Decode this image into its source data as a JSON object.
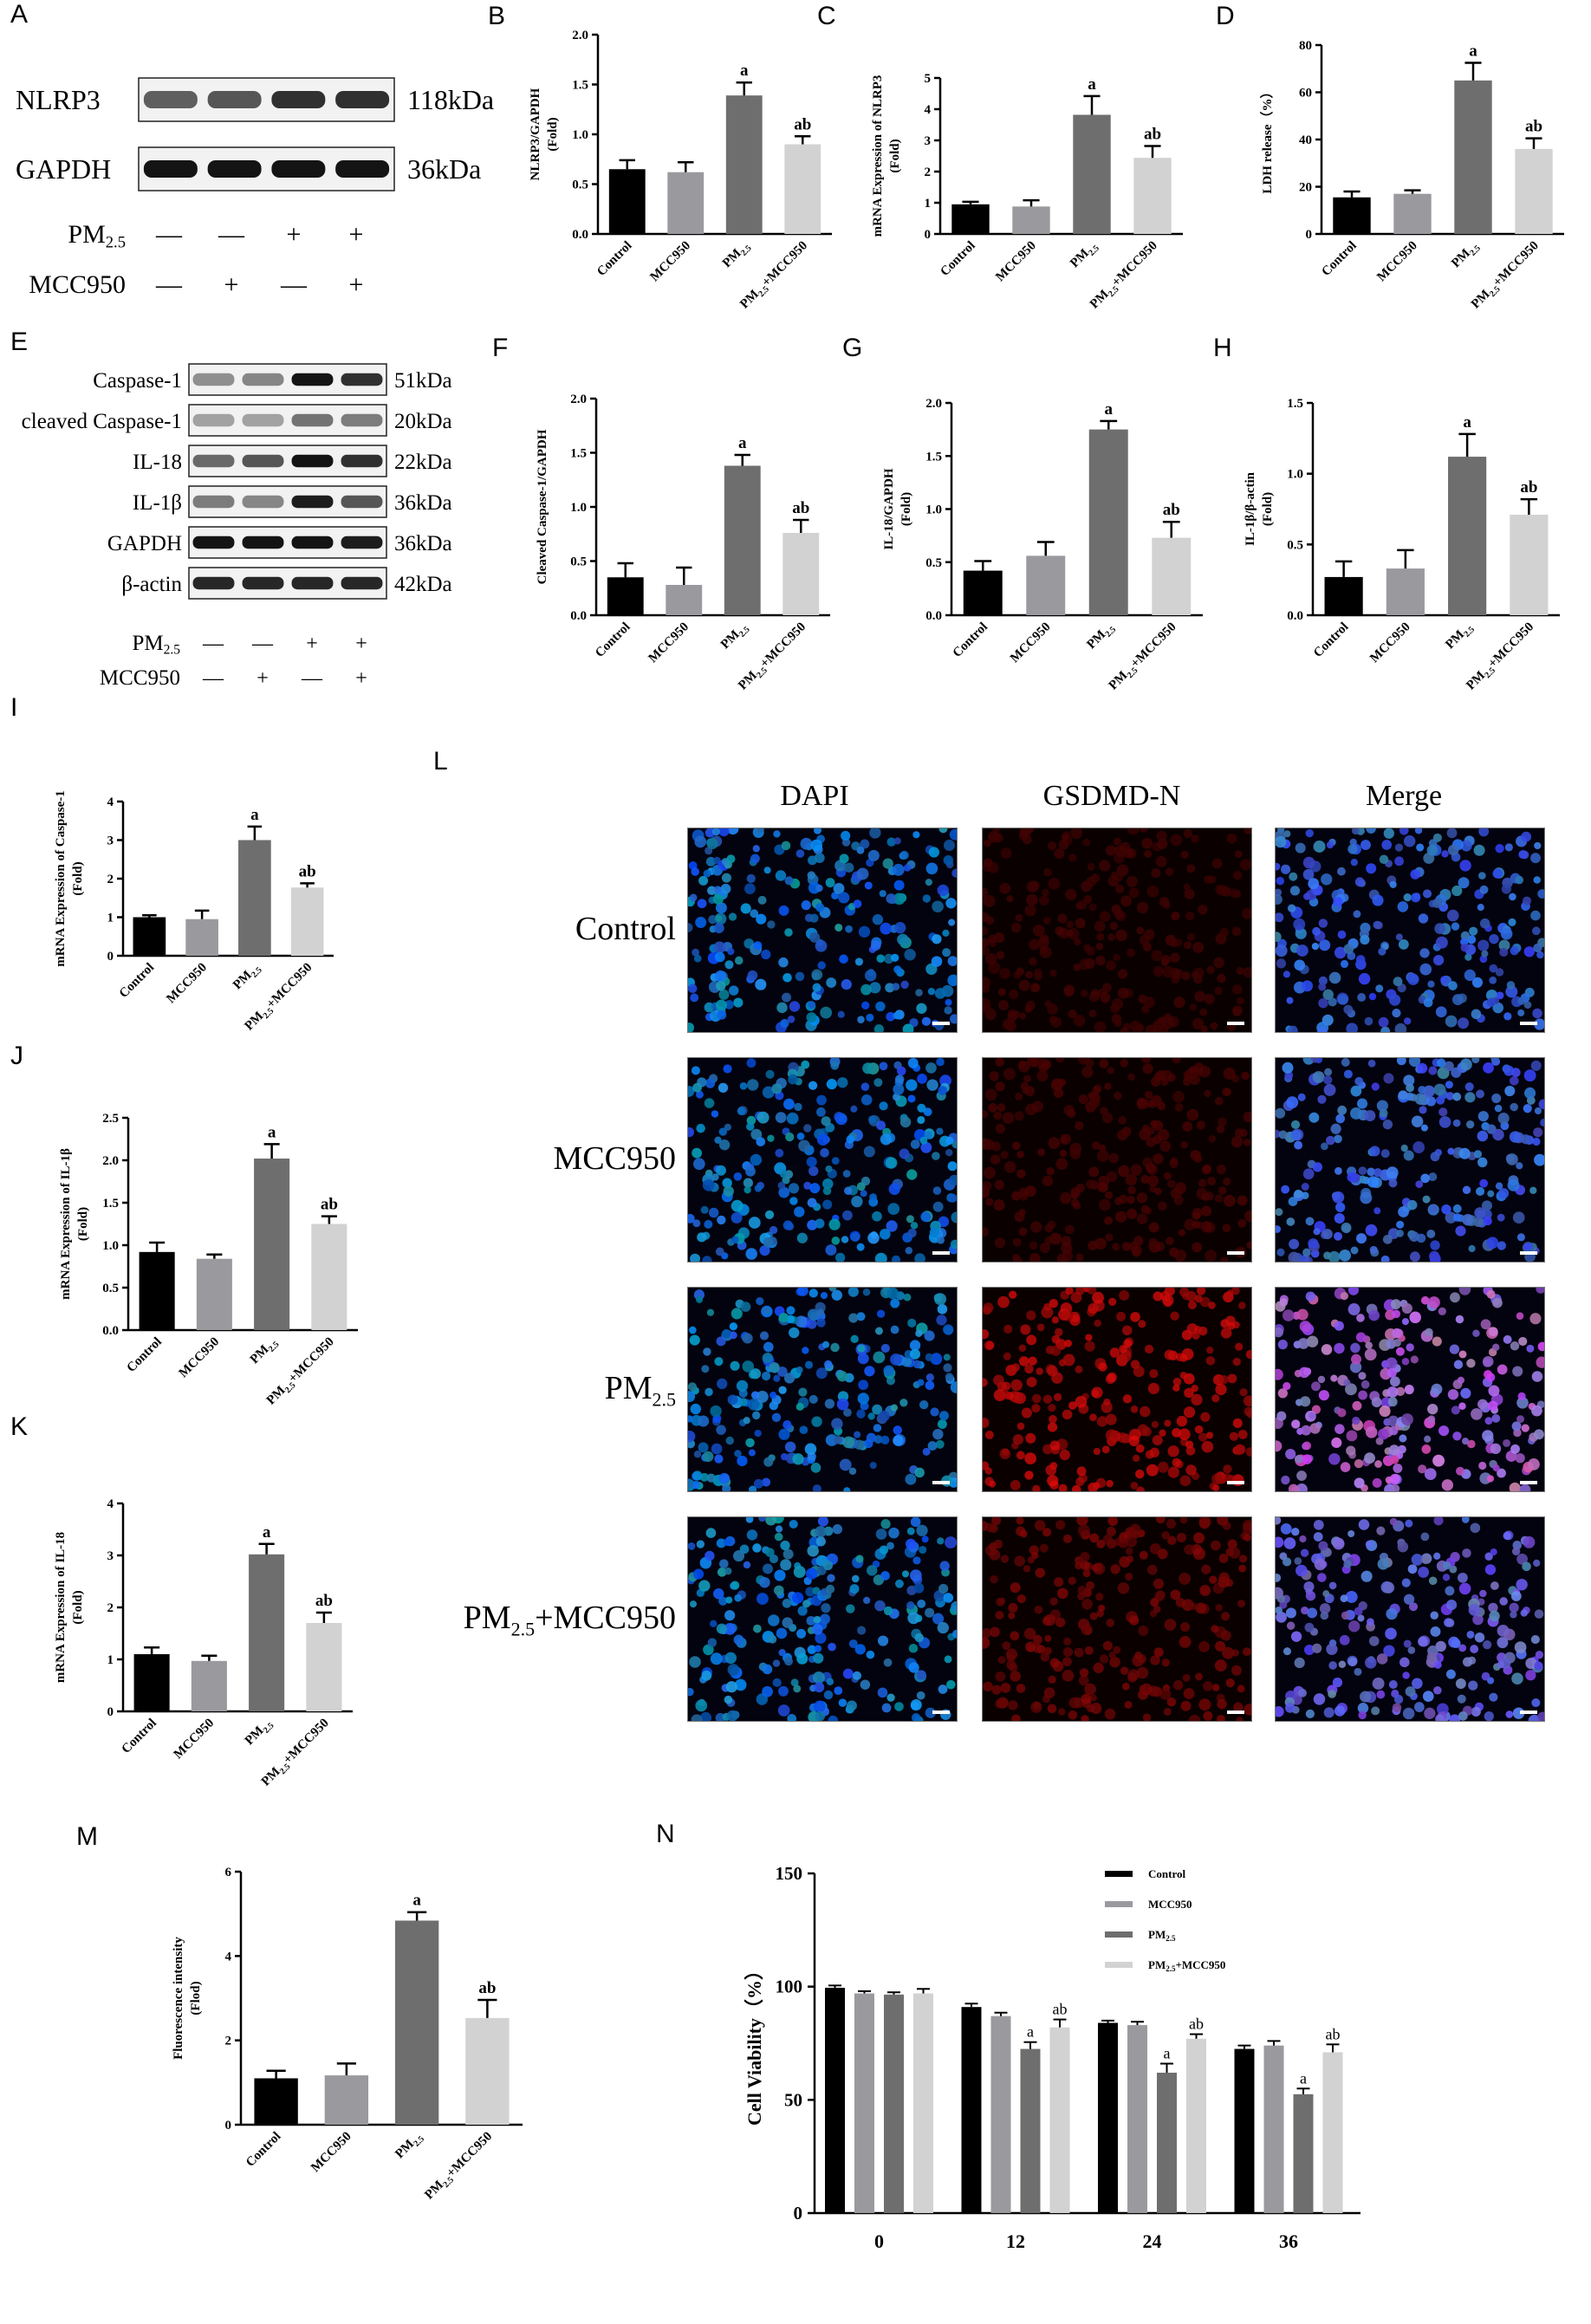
{
  "colors": {
    "control": "#000000",
    "mcc950": "#9a9a9e",
    "pm25": "#6e6e6e",
    "pm25_mcc950": "#d2d2d2"
  },
  "panels": {
    "A": "A",
    "B": "B",
    "C": "C",
    "D": "D",
    "E": "E",
    "F": "F",
    "G": "G",
    "H": "H",
    "I": "I",
    "J": "J",
    "K": "K",
    "L": "L",
    "M": "M",
    "N": "N"
  },
  "blot_a": {
    "rows": [
      {
        "label": "NLRP3",
        "size": "118kDa"
      },
      {
        "label": "GAPDH",
        "size": "36kDa"
      }
    ],
    "treatments": [
      {
        "label": "PM",
        "sub": "2.5",
        "signs": [
          "—",
          "—",
          "+",
          "+"
        ]
      },
      {
        "label": "MCC950",
        "sub": "",
        "signs": [
          "—",
          "+",
          "—",
          "+"
        ]
      }
    ]
  },
  "blot_e": {
    "rows": [
      {
        "label": "Caspase-1",
        "size": "51kDa"
      },
      {
        "label": "cleaved Caspase-1",
        "size": "20kDa"
      },
      {
        "label": "IL-18",
        "size": "22kDa"
      },
      {
        "label": "IL-1β",
        "size": "36kDa"
      },
      {
        "label": "GAPDH",
        "size": "36kDa"
      },
      {
        "label": "β-actin",
        "size": "42kDa"
      }
    ],
    "treatments": [
      {
        "label": "PM",
        "sub": "2.5",
        "signs": [
          "—",
          "—",
          "+",
          "+"
        ]
      },
      {
        "label": "MCC950",
        "sub": "",
        "signs": [
          "—",
          "+",
          "—",
          "+"
        ]
      }
    ]
  },
  "categories": [
    "Control",
    "MCC950",
    "PM2.5",
    "PM2.5+MCC950"
  ],
  "chart_data": [
    {
      "id": "B",
      "type": "bar",
      "ylabel": "NLRP3/GAPDH",
      "ylabel2": "(Fold)",
      "ylim": [
        0,
        2.0
      ],
      "yticks": [
        "0.0",
        "0.5",
        "1.0",
        "1.5",
        "2.0"
      ],
      "values": [
        0.65,
        0.62,
        1.39,
        0.9
      ],
      "errors": [
        0.09,
        0.1,
        0.13,
        0.08
      ],
      "annotations": [
        "",
        "",
        "a",
        "ab"
      ]
    },
    {
      "id": "C",
      "type": "bar",
      "ylabel": "mRNA Expression of NLRP3",
      "ylabel2": "(Fold)",
      "ylim": [
        0,
        5
      ],
      "yticks": [
        "0",
        "1",
        "2",
        "3",
        "4",
        "5"
      ],
      "values": [
        0.95,
        0.88,
        3.82,
        2.44
      ],
      "errors": [
        0.08,
        0.2,
        0.6,
        0.38
      ],
      "annotations": [
        "",
        "",
        "a",
        "ab"
      ]
    },
    {
      "id": "D",
      "type": "bar",
      "ylabel": "LDH release（%）",
      "ylabel2": "",
      "ylim": [
        0,
        80
      ],
      "yticks": [
        "0",
        "20",
        "40",
        "60",
        "80"
      ],
      "values": [
        15.5,
        17,
        65,
        36
      ],
      "errors": [
        2.5,
        1.5,
        7.5,
        4.5
      ],
      "annotations": [
        "",
        "",
        "a",
        "ab"
      ]
    },
    {
      "id": "F",
      "type": "bar",
      "ylabel": "Cleaved Caspase-1/GAPDH",
      "ylabel2": "",
      "ylim": [
        0,
        2.0
      ],
      "yticks": [
        "0.0",
        "0.5",
        "1.0",
        "1.5",
        "2.0"
      ],
      "values": [
        0.35,
        0.28,
        1.38,
        0.76
      ],
      "errors": [
        0.13,
        0.16,
        0.1,
        0.12
      ],
      "annotations": [
        "",
        "",
        "a",
        "ab"
      ]
    },
    {
      "id": "G",
      "type": "bar",
      "ylabel": "IL-18/GAPDH",
      "ylabel2": "(Fold)",
      "ylim": [
        0,
        2.0
      ],
      "yticks": [
        "0.0",
        "0.5",
        "1.0",
        "1.5",
        "2.0"
      ],
      "values": [
        0.42,
        0.56,
        1.75,
        0.73
      ],
      "errors": [
        0.09,
        0.13,
        0.08,
        0.15
      ],
      "annotations": [
        "",
        "",
        "a",
        "ab"
      ]
    },
    {
      "id": "H",
      "type": "bar",
      "ylabel": "IL-1β/β-actin",
      "ylabel2": "(Fold)",
      "ylim": [
        0,
        1.5
      ],
      "yticks": [
        "0.0",
        "0.5",
        "1.0",
        "1.5"
      ],
      "values": [
        0.27,
        0.33,
        1.12,
        0.71
      ],
      "errors": [
        0.11,
        0.13,
        0.16,
        0.11
      ],
      "annotations": [
        "",
        "",
        "a",
        "ab"
      ]
    },
    {
      "id": "I",
      "type": "bar",
      "ylabel": "mRNA Expression of Caspase-1",
      "ylabel2": "(Fold)",
      "ylim": [
        0,
        4
      ],
      "yticks": [
        "0",
        "1",
        "2",
        "3",
        "4"
      ],
      "values": [
        1.0,
        0.95,
        3.0,
        1.77
      ],
      "errors": [
        0.05,
        0.22,
        0.35,
        0.11
      ],
      "annotations": [
        "",
        "",
        "a",
        "ab"
      ]
    },
    {
      "id": "J",
      "type": "bar",
      "ylabel": "mRNA Expression of IL-1β",
      "ylabel2": "(Fold)",
      "ylim": [
        0,
        2.5
      ],
      "yticks": [
        "0.0",
        "0.5",
        "1.0",
        "1.5",
        "2.0",
        "2.5"
      ],
      "values": [
        0.92,
        0.84,
        2.02,
        1.25
      ],
      "errors": [
        0.11,
        0.05,
        0.17,
        0.09
      ],
      "annotations": [
        "",
        "",
        "a",
        "ab"
      ]
    },
    {
      "id": "K",
      "type": "bar",
      "ylabel": "mRNA Expression of IL-18",
      "ylabel2": "(Fold)",
      "ylim": [
        0,
        4
      ],
      "yticks": [
        "0",
        "1",
        "2",
        "3",
        "4"
      ],
      "values": [
        1.1,
        0.97,
        3.02,
        1.7
      ],
      "errors": [
        0.13,
        0.1,
        0.2,
        0.2
      ],
      "annotations": [
        "",
        "",
        "a",
        "ab"
      ]
    },
    {
      "id": "M",
      "type": "bar",
      "ylabel": "Fluorescence intensity",
      "ylabel2": "(Flod)",
      "ylim": [
        0,
        6
      ],
      "yticks": [
        "0",
        "2",
        "4",
        "6"
      ],
      "values": [
        1.1,
        1.17,
        4.84,
        2.53
      ],
      "errors": [
        0.18,
        0.28,
        0.2,
        0.43
      ],
      "annotations": [
        "",
        "",
        "a",
        "ab"
      ]
    },
    {
      "id": "N",
      "type": "bar",
      "ylabel": "Cell Viability（%）",
      "ylim": [
        0,
        150
      ],
      "yticks": [
        "0",
        "50",
        "100",
        "150"
      ],
      "categories": [
        "0",
        "12",
        "24",
        "36"
      ],
      "series": [
        {
          "name": "Control",
          "values": [
            99.5,
            91,
            84,
            72.5
          ],
          "errors": [
            1,
            1.5,
            1,
            1.5
          ],
          "annotations": [
            "",
            "",
            "",
            ""
          ]
        },
        {
          "name": "MCC950",
          "values": [
            97,
            87,
            83,
            74
          ],
          "errors": [
            1,
            1.5,
            1.5,
            2
          ],
          "annotations": [
            "",
            "",
            "",
            ""
          ]
        },
        {
          "name": "PM2.5",
          "values": [
            96.5,
            72.5,
            62,
            52.5
          ],
          "errors": [
            1,
            3,
            4,
            2.5
          ],
          "annotations": [
            "",
            "a",
            "a",
            "a"
          ]
        },
        {
          "name": "PM2.5+MCC950",
          "values": [
            97,
            82,
            77,
            71
          ],
          "errors": [
            2,
            3.5,
            2,
            3.5
          ],
          "annotations": [
            "",
            "ab",
            "ab",
            "ab"
          ]
        }
      ]
    }
  ],
  "fluorescence": {
    "columns": [
      "DAPI",
      "GSDMD-N",
      "Merge"
    ],
    "rows": [
      {
        "label": "Control",
        "sub": "",
        "suffix": "",
        "red_level": 0.15
      },
      {
        "label": "MCC950",
        "sub": "",
        "suffix": "",
        "red_level": 0.2
      },
      {
        "label": "PM",
        "sub": "2.5",
        "suffix": "",
        "red_level": 0.95
      },
      {
        "label": "PM",
        "sub": "2.5",
        "suffix": "+MCC950",
        "red_level": 0.5
      }
    ]
  }
}
